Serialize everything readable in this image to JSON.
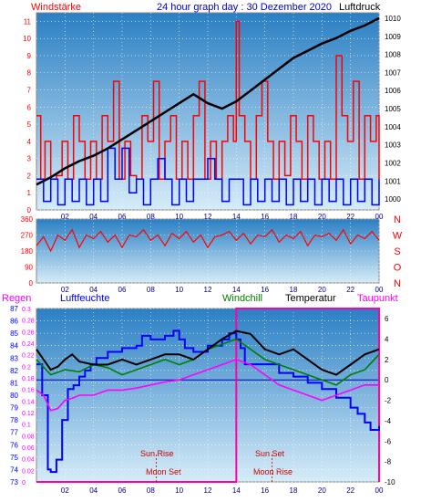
{
  "header": {
    "wind_label": "Windstärke",
    "title": "24 hour graph day : 30 Dezember 2020",
    "pressure_label": "Luftdruck"
  },
  "bottom_labels": {
    "rain": "Regen",
    "humidity": "Luftfeuchte",
    "windchill": "Windchill",
    "temperature": "Temperatur",
    "dewpoint": "Taupunkt"
  },
  "sun_moon": {
    "sun_rise": "Sun Rise",
    "moon_set": "Moon Set",
    "sun_set": "Sun Set",
    "moon_rise": "Moon Rise"
  },
  "colors": {
    "wind": "#ff0000",
    "wind_avg": "#0000ff",
    "pressure": "#000000",
    "humidity": "#0000ff",
    "windchill": "#008000",
    "temperature": "#000000",
    "dewpoint": "#ff00ff",
    "rain": "#ff00ff",
    "sky_top": "#2a7fc4",
    "sky_bottom": "#d6ecf8"
  },
  "chart_data": [
    {
      "type": "line",
      "name": "wind-pressure",
      "x_ticks": [
        "02",
        "04",
        "06",
        "08",
        "10",
        "12",
        "14",
        "16",
        "18",
        "20",
        "22",
        "00"
      ],
      "xlim": [
        0,
        24
      ],
      "y_left_ticks": [
        "0",
        "1",
        "2",
        "3",
        "4",
        "5",
        "6",
        "7",
        "8",
        "9",
        "10",
        "11"
      ],
      "y_left_lim": [
        0,
        11.5
      ],
      "y_right_ticks": [
        "1000",
        "1001",
        "1002",
        "1003",
        "1004",
        "1005",
        "1006",
        "1007",
        "1008",
        "1009",
        "1010"
      ],
      "y_right_lim": [
        999.4,
        1010.3
      ],
      "series": [
        {
          "name": "Windstärke",
          "color": "#ff0000",
          "x": [
            0,
            0.3,
            0.6,
            1.0,
            1.4,
            1.8,
            2.2,
            2.6,
            3.0,
            3.4,
            3.8,
            4.2,
            4.6,
            5.0,
            5.4,
            5.8,
            6.2,
            6.6,
            7.0,
            7.4,
            7.8,
            8.2,
            8.6,
            9.0,
            9.4,
            9.8,
            10.2,
            10.6,
            11.0,
            11.4,
            11.8,
            12.2,
            12.6,
            13.0,
            13.4,
            13.8,
            14.0,
            14.2,
            14.6,
            15.0,
            15.4,
            15.8,
            16.2,
            16.6,
            17.0,
            17.4,
            17.8,
            18.2,
            18.6,
            19.0,
            19.4,
            19.8,
            20.2,
            20.6,
            21.0,
            21.4,
            21.8,
            22.2,
            22.6,
            23.0,
            23.4,
            23.8,
            24.0
          ],
          "y": [
            5.5,
            1.8,
            4.0,
            1.8,
            2.0,
            4.0,
            1.8,
            5.5,
            4.0,
            1.8,
            4.0,
            1.8,
            5.5,
            4.0,
            7.5,
            1.8,
            4.0,
            2.0,
            1.8,
            5.5,
            4.0,
            7.5,
            1.8,
            4.0,
            5.5,
            1.8,
            4.0,
            1.8,
            5.5,
            7.5,
            1.8,
            4.0,
            1.8,
            4.0,
            5.5,
            4.0,
            11.0,
            5.5,
            4.0,
            1.8,
            5.5,
            7.5,
            4.0,
            1.8,
            4.0,
            2.0,
            5.5,
            4.0,
            1.8,
            5.5,
            4.0,
            1.8,
            4.0,
            1.8,
            9.0,
            5.5,
            4.0,
            7.5,
            1.8,
            5.5,
            4.0,
            5.5,
            1.8
          ]
        },
        {
          "name": "Wind avg",
          "color": "#0000ff",
          "x": [
            0,
            0.5,
            1.0,
            1.5,
            2.0,
            2.5,
            3.0,
            3.5,
            4.0,
            4.5,
            5.0,
            5.5,
            6.0,
            6.5,
            7.0,
            7.5,
            8.0,
            8.5,
            9.0,
            9.5,
            10.0,
            10.5,
            11.0,
            11.5,
            12.0,
            12.5,
            13.0,
            13.5,
            14.0,
            14.5,
            15.0,
            15.5,
            16.0,
            16.5,
            17.0,
            17.5,
            18.0,
            18.5,
            19.0,
            19.5,
            20.0,
            20.5,
            21.0,
            21.5,
            22.0,
            22.5,
            23.0,
            23.5,
            24.0
          ],
          "y": [
            1.8,
            0.5,
            1.8,
            0.3,
            1.8,
            0.5,
            1.8,
            0.3,
            1.8,
            0.5,
            3.6,
            1.8,
            3.6,
            1.0,
            1.8,
            0.3,
            1.8,
            3.0,
            1.8,
            0.3,
            1.8,
            0.5,
            1.8,
            1.8,
            3.0,
            1.8,
            0.5,
            1.8,
            1.8,
            0.3,
            1.8,
            0.5,
            1.8,
            0.5,
            1.8,
            0.3,
            1.8,
            0.5,
            1.8,
            0.3,
            1.8,
            0.5,
            1.8,
            0.3,
            1.8,
            0.5,
            1.8,
            0.3,
            1.8
          ]
        },
        {
          "name": "Luftdruck",
          "color": "#000000",
          "x": [
            0,
            1,
            2,
            3,
            4,
            5,
            6,
            7,
            8,
            9,
            10,
            11,
            12,
            13,
            14,
            15,
            16,
            17,
            18,
            19,
            20,
            21,
            22,
            23,
            24
          ],
          "y": [
            1000.8,
            1001.2,
            1001.7,
            1002.1,
            1002.4,
            1002.8,
            1003.3,
            1003.8,
            1004.3,
            1004.8,
            1005.3,
            1005.8,
            1005.3,
            1005.0,
            1005.4,
            1006.0,
            1006.6,
            1007.2,
            1007.8,
            1008.2,
            1008.6,
            1008.9,
            1009.3,
            1009.6,
            1010.0
          ]
        }
      ]
    },
    {
      "type": "scatter",
      "name": "wind-direction",
      "x_ticks": [
        "02",
        "04",
        "06",
        "08",
        "10",
        "12",
        "14",
        "16",
        "18",
        "20",
        "22",
        "00"
      ],
      "xlim": [
        0,
        24
      ],
      "y_ticks": [
        "0",
        "90",
        "180",
        "270",
        "360"
      ],
      "ylim": [
        0,
        360
      ],
      "y_right_ticks": [
        "N",
        "W",
        "S",
        "O",
        "N"
      ],
      "series": [
        {
          "name": "Windrichtung",
          "color": "#ff0000",
          "x": [
            0,
            0.5,
            1,
            1.5,
            2,
            2.5,
            3,
            3.5,
            4,
            4.5,
            5,
            5.5,
            6,
            6.5,
            7,
            7.5,
            8,
            8.5,
            9,
            9.5,
            10,
            10.5,
            11,
            11.5,
            12,
            12.5,
            13,
            13.5,
            14,
            14.5,
            15,
            15.5,
            16,
            16.5,
            17,
            17.5,
            18,
            18.5,
            19,
            19.5,
            20,
            20.5,
            21,
            21.5,
            22,
            22.5,
            23,
            23.5,
            24
          ],
          "y": [
            210,
            260,
            180,
            270,
            240,
            300,
            200,
            270,
            250,
            290,
            230,
            270,
            200,
            270,
            260,
            300,
            240,
            270,
            210,
            280,
            250,
            290,
            230,
            270,
            200,
            260,
            270,
            290,
            240,
            280,
            220,
            270,
            260,
            300,
            230,
            270,
            250,
            290,
            210,
            270,
            260,
            280,
            240,
            300,
            220,
            270,
            250,
            290,
            240
          ]
        }
      ]
    },
    {
      "type": "line",
      "name": "humidity-temperature",
      "x_ticks": [
        "02",
        "04",
        "06",
        "08",
        "10",
        "12",
        "14",
        "16",
        "18",
        "20",
        "22",
        "00"
      ],
      "xlim": [
        0,
        24
      ],
      "y_left_humidity_ticks": [
        "73",
        "74",
        "75",
        "76",
        "77",
        "78",
        "79",
        "80",
        "81",
        "82",
        "83",
        "84",
        "85",
        "86",
        "87"
      ],
      "y_left_humidity_lim": [
        73,
        87
      ],
      "y_left_rain_ticks": [
        "0",
        "0.02",
        "0.04",
        "0.06",
        "0.08",
        "0.1",
        "0.12",
        "0.14",
        "0.16",
        "0.18",
        "0.2",
        "0.22",
        "0.24",
        "0.26",
        "0.28",
        "0.3"
      ],
      "y_left_rain_lim": [
        0,
        0.3
      ],
      "y_right_ticks": [
        "-10",
        "-8",
        "-6",
        "-4",
        "-2",
        "0",
        "2",
        "4",
        "6"
      ],
      "y_right_lim": [
        -10,
        7
      ],
      "series": [
        {
          "name": "Luftfeuchte",
          "color": "#0000ff",
          "x": [
            0,
            0.4,
            0.8,
            1.0,
            1.4,
            1.8,
            2.2,
            2.6,
            3.0,
            3.4,
            3.8,
            4.2,
            5.0,
            6.0,
            7.0,
            7.4,
            8.0,
            9.0,
            9.6,
            10.0,
            10.4,
            11.0,
            12.0,
            13.0,
            13.5,
            14.0,
            14.3,
            14.6,
            15.0,
            16.0,
            17.0,
            18.0,
            19.0,
            20.0,
            21.0,
            22.0,
            22.5,
            23.0,
            23.4,
            24.0
          ],
          "y": [
            82.5,
            80.0,
            74.0,
            73.8,
            74.8,
            78.0,
            80.5,
            80.8,
            81.5,
            82.0,
            82.5,
            83.0,
            83.5,
            83.8,
            84.0,
            84.8,
            84.5,
            84.8,
            85.2,
            84.5,
            83.8,
            83.5,
            84.0,
            84.5,
            85.0,
            84.5,
            83.8,
            82.5,
            82.5,
            82.5,
            81.8,
            81.5,
            81.0,
            80.5,
            79.8,
            79.0,
            78.5,
            77.8,
            77.2,
            77.5
          ]
        },
        {
          "name": "Windchill",
          "color": "#008000",
          "x": [
            0,
            1,
            2,
            3,
            4,
            5,
            6,
            7,
            8,
            9,
            10,
            11,
            12,
            13,
            14,
            15,
            16,
            17,
            18,
            19,
            20,
            21,
            22,
            23,
            24
          ],
          "y": [
            2.0,
            0.5,
            1.0,
            0.8,
            1.5,
            1.2,
            0.5,
            1.0,
            1.5,
            2.0,
            1.5,
            2.0,
            3.0,
            3.5,
            4.0,
            3.0,
            2.0,
            1.5,
            1.0,
            0.5,
            0.0,
            -0.5,
            0.5,
            1.0,
            2.5
          ]
        },
        {
          "name": "Temperatur",
          "color": "#000000",
          "x": [
            0,
            0.5,
            1,
            1.5,
            2,
            2.5,
            3,
            4,
            5,
            6,
            7,
            8,
            9,
            10,
            11,
            12,
            13,
            14,
            15,
            16,
            17,
            18,
            19,
            20,
            21,
            22,
            23,
            24
          ],
          "y": [
            3.0,
            2.0,
            1.0,
            1.3,
            2.0,
            2.5,
            1.8,
            1.5,
            1.5,
            2.0,
            1.5,
            2.0,
            2.5,
            2.5,
            2.0,
            3.0,
            4.0,
            4.8,
            4.5,
            3.0,
            2.5,
            3.0,
            2.0,
            1.0,
            0.5,
            1.5,
            2.5,
            3.0
          ]
        },
        {
          "name": "Taupunkt",
          "color": "#ff00ff",
          "x": [
            0,
            0.5,
            1,
            1.5,
            2,
            2.5,
            3,
            4,
            5,
            6,
            7,
            8,
            9,
            10,
            11,
            12,
            13,
            14,
            15,
            16,
            17,
            18,
            19,
            20,
            21,
            22,
            23,
            24
          ],
          "y": [
            -1.0,
            -1.5,
            -3.0,
            -2.8,
            -2.0,
            -1.8,
            -1.5,
            -1.5,
            -1.0,
            -1.0,
            -0.8,
            -0.5,
            -0.2,
            0.0,
            0.5,
            1.0,
            1.5,
            2.0,
            1.5,
            0.5,
            -0.5,
            -1.0,
            -1.5,
            -2.0,
            -1.5,
            -1.0,
            -0.5,
            -0.5
          ]
        },
        {
          "name": "Regen",
          "color": "#ff00ff",
          "x": [
            0,
            24
          ],
          "y": [
            0,
            0
          ]
        }
      ],
      "daylight": {
        "sun_rise": 8.4,
        "sun_set": 16.5,
        "moon_set": 8.4,
        "moon_rise": 16.5
      }
    }
  ]
}
